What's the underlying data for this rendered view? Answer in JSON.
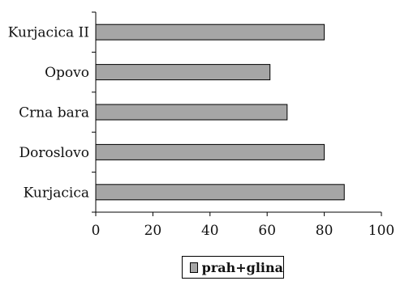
{
  "chart_data": {
    "type": "bar",
    "orientation": "horizontal",
    "categories": [
      "Kurjacica II",
      "Opovo",
      "Crna bara",
      "Doroslovo",
      "Kurjacica"
    ],
    "series": [
      {
        "name": "prah+glina",
        "values": [
          80,
          61,
          67,
          80,
          87
        ]
      }
    ],
    "xlim": [
      0,
      100
    ],
    "xticks": [
      "0",
      "20",
      "40",
      "60",
      "80",
      "100"
    ],
    "grid": false,
    "legend_position": "bottom-center",
    "bar_color": "#a6a6a6"
  }
}
